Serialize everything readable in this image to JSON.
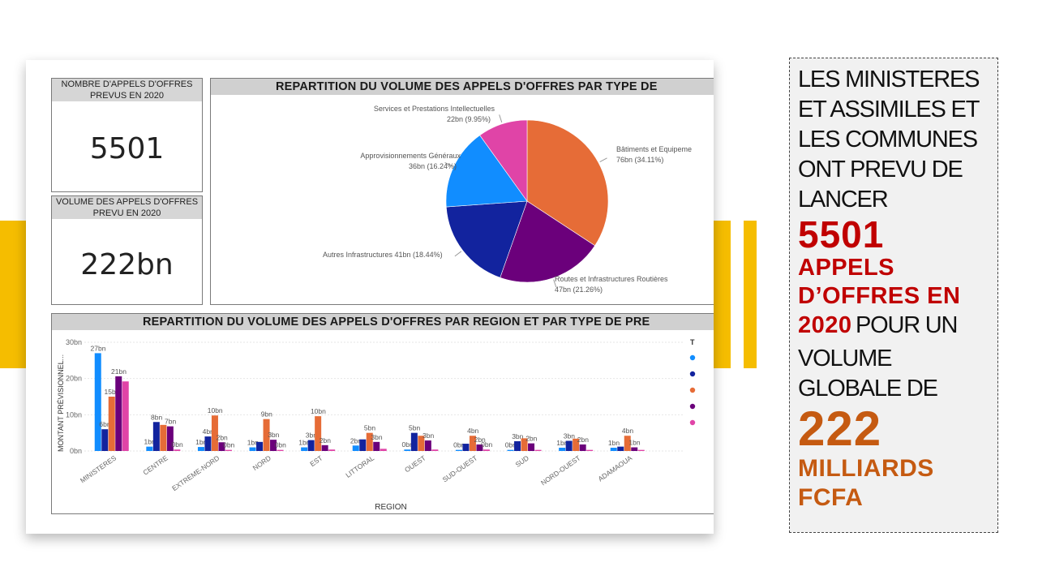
{
  "kpis": [
    {
      "label": "NOMBRE D'APPELS D'OFFRES PREVUS EN 2020",
      "value": "5501"
    },
    {
      "label": "VOLUME DES APPELS D'OFFRES PREVU EN 2020",
      "value": "222bn"
    }
  ],
  "pie_title": "REPARTITION DU VOLUME DES APPELS D'OFFRES PAR TYPE DE",
  "bar_title": "REPARTITION DU VOLUME DES APPELS D'OFFRES PAR REGION ET PAR TYPE DE PRE",
  "bar_legend_letter": "T",
  "right_text": {
    "line1": "LES MINISTERES",
    "line2": "ET ASSIMILES ET",
    "line3": "LES COMMUNES",
    "line4": "ONT PREVU DE",
    "line5": "LANCER",
    "count": "5501",
    "appels1": "APPELS",
    "appels2": "D’OFFRES EN",
    "year": "2020",
    "pour": "POUR UN",
    "volume": "VOLUME",
    "globale": "GLOBALE DE",
    "amount": "222",
    "milliards": "MILLIARDS",
    "fcfa": "FCFA"
  },
  "colors": {
    "accent_yellow": "#f5bd00",
    "red_text": "#c00000",
    "orange_text": "#c55a11",
    "series": [
      "#118dff",
      "#12239e",
      "#e66c37",
      "#6b007b",
      "#e044a7"
    ]
  },
  "chart_data": [
    {
      "type": "pie",
      "title": "REPARTITION DU VOLUME DES APPELS D'OFFRES PAR TYPE DE",
      "slices": [
        {
          "name": "Bâtiments et Equipeme",
          "value": 76,
          "label": "76bn (34.11%)",
          "color": "#e66c37"
        },
        {
          "name": "Routes et Infrastructures Routières",
          "value": 47,
          "label": "47bn (21.26%)",
          "color": "#6b007b"
        },
        {
          "name": "Autres Infrastructures",
          "value": 41,
          "label": "41bn (18.44%)",
          "color": "#12239e"
        },
        {
          "name": "Approvisionnements Généraux",
          "value": 36,
          "label": "36bn (16.24%)",
          "color": "#118dff"
        },
        {
          "name": "Services et Prestations Intellectuelles",
          "value": 22,
          "label": "22bn (9.95%)",
          "color": "#e044a7"
        }
      ]
    },
    {
      "type": "bar",
      "title": "REPARTITION DU VOLUME DES APPELS D'OFFRES PAR REGION ET PAR TYPE DE PRE",
      "xlabel": "REGION",
      "ylabel": "MONTANT PRÉVISIONNEL...",
      "ylim": [
        0,
        30
      ],
      "yticks": [
        "0bn",
        "10bn",
        "20bn",
        "30bn"
      ],
      "categories": [
        "MINISTERES",
        "CENTRE",
        "EXTREME-NORD",
        "NORD",
        "EST",
        "LITTORAL",
        "OUEST",
        "SUD-OUEST",
        "SUD",
        "NORD-OUEST",
        "ADAMAOUA"
      ],
      "series": [
        {
          "color": "#118dff",
          "values": [
            27,
            1.2,
            1.1,
            1,
            1,
            1.5,
            0.4,
            0.3,
            0.3,
            0.9,
            0.9
          ],
          "labels": [
            "27bn",
            "1bn",
            "1bn",
            "1bn",
            "1bn",
            "2bn",
            "0bn",
            "0bn",
            "0bn",
            "1bn",
            "1bn"
          ]
        },
        {
          "color": "#12239e",
          "values": [
            6,
            8,
            4,
            2.5,
            3,
            3.2,
            5,
            2,
            2.7,
            2.8,
            1.2
          ],
          "labels": [
            "6bn",
            "8bn",
            "4bn",
            "",
            "3bn",
            "",
            "5bn",
            "",
            "3bn",
            "3bn",
            ""
          ]
        },
        {
          "color": "#e66c37",
          "values": [
            15,
            7.2,
            9.8,
            8.8,
            9.6,
            5,
            4.2,
            4.2,
            3.5,
            3.4,
            4.2
          ],
          "labels": [
            "15bn",
            "",
            "10bn",
            "9bn",
            "10bn",
            "5bn",
            "",
            "4bn",
            "",
            "",
            "4bn"
          ]
        },
        {
          "color": "#6b007b",
          "values": [
            20.6,
            6.8,
            2.4,
            3.1,
            1.6,
            2.5,
            2.9,
            1.8,
            2.1,
            1.8,
            1
          ],
          "labels": [
            "21bn",
            "7bn",
            "2bn",
            "3bn",
            "2bn",
            "3bn",
            "3bn",
            "2bn",
            "2bn",
            "2bn",
            "1bn"
          ]
        },
        {
          "color": "#e044a7",
          "values": [
            19.2,
            0.4,
            0.3,
            0.3,
            0.4,
            0.6,
            0.4,
            0.4,
            0.3,
            0.3,
            0.3
          ],
          "labels": [
            "",
            "0bn",
            "0bn",
            "0bn",
            "",
            "",
            "",
            "0bn",
            "",
            "",
            ""
          ]
        }
      ]
    }
  ]
}
